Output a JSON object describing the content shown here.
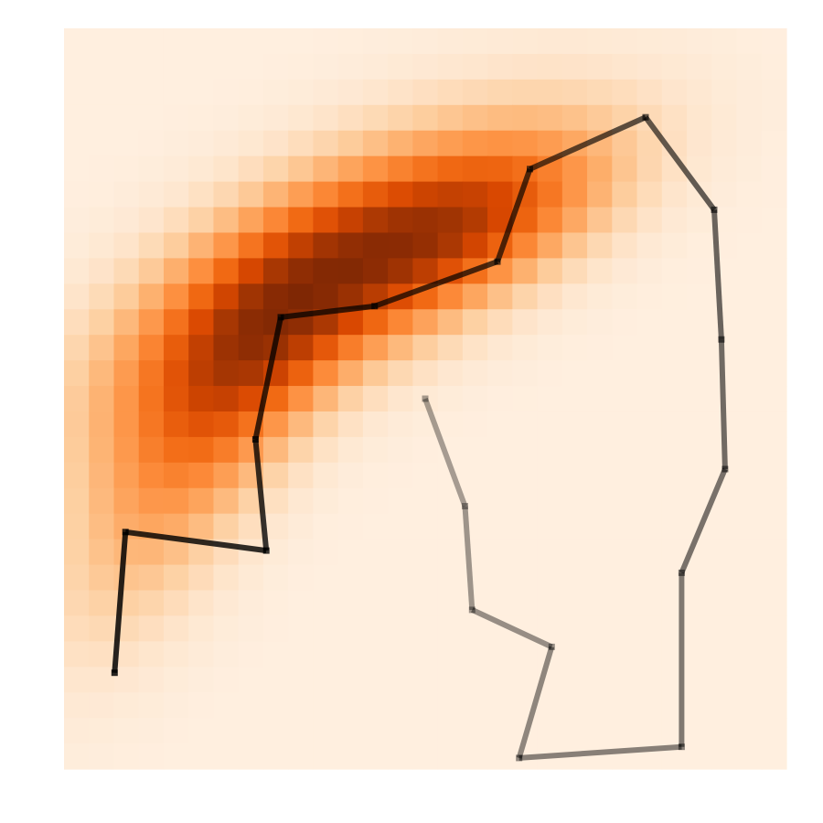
{
  "chart_data": {
    "type": "heatmap",
    "title": "",
    "xlabel": "",
    "ylabel": "",
    "xlim": [
      0,
      1
    ],
    "ylim": [
      0,
      1
    ],
    "grid": false,
    "axes_visible": false,
    "colormap": "Oranges",
    "colormap_stops": [
      "#fff5eb",
      "#fee6ce",
      "#fdd0a2",
      "#fdae6b",
      "#fd8d3c",
      "#f16913",
      "#d94801",
      "#a63603",
      "#7f2704"
    ],
    "heatmap": {
      "grid_size": [
        29,
        29
      ],
      "background_level": 0.05,
      "blobs": [
        {
          "cx": 0.34,
          "cy": 0.66,
          "sx": 0.22,
          "sy": 0.09,
          "angle_deg": 30,
          "amp": 0.7
        },
        {
          "cx": 0.58,
          "cy": 0.74,
          "sx": 0.16,
          "sy": 0.07,
          "angle_deg": 25,
          "amp": 0.45
        },
        {
          "cx": 0.14,
          "cy": 0.38,
          "sx": 0.17,
          "sy": 0.08,
          "angle_deg": 60,
          "amp": 0.32
        },
        {
          "cx": 0.26,
          "cy": 0.52,
          "sx": 0.12,
          "sy": 0.07,
          "angle_deg": 55,
          "amp": 0.2
        }
      ]
    },
    "series": [
      {
        "color": "#000000",
        "start_opacity": 0.85,
        "end_opacity": 0.35,
        "points": [
          {
            "x": 0.07,
            "y": 0.13
          },
          {
            "x": 0.085,
            "y": 0.32
          },
          {
            "x": 0.28,
            "y": 0.295
          },
          {
            "x": 0.265,
            "y": 0.445
          },
          {
            "x": 0.3,
            "y": 0.61
          },
          {
            "x": 0.43,
            "y": 0.625
          },
          {
            "x": 0.6,
            "y": 0.685
          },
          {
            "x": 0.645,
            "y": 0.81
          },
          {
            "x": 0.805,
            "y": 0.88
          },
          {
            "x": 0.9,
            "y": 0.755
          },
          {
            "x": 0.91,
            "y": 0.58
          },
          {
            "x": 0.915,
            "y": 0.405
          },
          {
            "x": 0.855,
            "y": 0.265
          },
          {
            "x": 0.855,
            "y": 0.03
          },
          {
            "x": 0.63,
            "y": 0.015
          },
          {
            "x": 0.675,
            "y": 0.165
          },
          {
            "x": 0.565,
            "y": 0.215
          },
          {
            "x": 0.555,
            "y": 0.355
          },
          {
            "x": 0.5,
            "y": 0.5
          }
        ]
      }
    ]
  }
}
